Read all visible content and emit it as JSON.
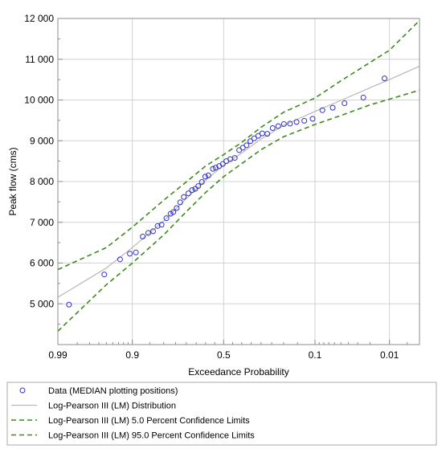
{
  "chart_data": {
    "type": "scatter",
    "title": "",
    "xlabel": "Exceedance Probability",
    "ylabel": "Peak flow (cms)",
    "x_scale": "normal-probability",
    "x_range": [
      0.99,
      0.003
    ],
    "ylim": [
      4000,
      12000
    ],
    "grid": true,
    "legend_position": "bottom",
    "x_ticks": [
      {
        "value": 0.99,
        "label": "0.99"
      },
      {
        "value": 0.9,
        "label": "0.9"
      },
      {
        "value": 0.5,
        "label": "0.5"
      },
      {
        "value": 0.1,
        "label": "0.1"
      },
      {
        "value": 0.01,
        "label": "0.01"
      }
    ],
    "y_ticks": [
      {
        "value": 5000,
        "label": "5 000"
      },
      {
        "value": 6000,
        "label": "6 000"
      },
      {
        "value": 7000,
        "label": "7 000"
      },
      {
        "value": 8000,
        "label": "8 000"
      },
      {
        "value": 9000,
        "label": "9 000"
      },
      {
        "value": 10000,
        "label": "10 000"
      },
      {
        "value": 11000,
        "label": "11 000"
      },
      {
        "value": 12000,
        "label": "12 000"
      }
    ],
    "series": [
      {
        "name": "Data (MEDIAN plotting positions)",
        "kind": "points",
        "color": "#3030c8",
        "points": [
          [
            0.985,
            4980
          ],
          [
            0.953,
            5720
          ],
          [
            0.927,
            6090
          ],
          [
            0.906,
            6230
          ],
          [
            0.891,
            6260
          ],
          [
            0.872,
            6650
          ],
          [
            0.855,
            6740
          ],
          [
            0.839,
            6780
          ],
          [
            0.823,
            6910
          ],
          [
            0.808,
            6940
          ],
          [
            0.789,
            7100
          ],
          [
            0.772,
            7210
          ],
          [
            0.76,
            7250
          ],
          [
            0.745,
            7350
          ],
          [
            0.729,
            7490
          ],
          [
            0.712,
            7620
          ],
          [
            0.69,
            7710
          ],
          [
            0.671,
            7790
          ],
          [
            0.655,
            7820
          ],
          [
            0.639,
            7890
          ],
          [
            0.62,
            7990
          ],
          [
            0.602,
            8120
          ],
          [
            0.585,
            8150
          ],
          [
            0.56,
            8310
          ],
          [
            0.545,
            8340
          ],
          [
            0.525,
            8380
          ],
          [
            0.505,
            8430
          ],
          [
            0.485,
            8500
          ],
          [
            0.463,
            8550
          ],
          [
            0.438,
            8580
          ],
          [
            0.414,
            8770
          ],
          [
            0.394,
            8830
          ],
          [
            0.374,
            8890
          ],
          [
            0.354,
            8990
          ],
          [
            0.334,
            9060
          ],
          [
            0.314,
            9120
          ],
          [
            0.294,
            9180
          ],
          [
            0.27,
            9170
          ],
          [
            0.246,
            9310
          ],
          [
            0.222,
            9360
          ],
          [
            0.199,
            9410
          ],
          [
            0.176,
            9420
          ],
          [
            0.153,
            9460
          ],
          [
            0.129,
            9490
          ],
          [
            0.106,
            9540
          ],
          [
            0.083,
            9750
          ],
          [
            0.063,
            9810
          ],
          [
            0.045,
            9920
          ],
          [
            0.025,
            10060
          ],
          [
            0.012,
            10530
          ]
        ]
      },
      {
        "name": "Log-Pearson III (LM) Distribution",
        "kind": "line",
        "color": "#b8b8b8",
        "dash": "solid",
        "points": [
          [
            0.99,
            5160
          ],
          [
            0.95,
            5880
          ],
          [
            0.9,
            6380
          ],
          [
            0.8,
            7030
          ],
          [
            0.7,
            7580
          ],
          [
            0.6,
            8030
          ],
          [
            0.5,
            8400
          ],
          [
            0.4,
            8700
          ],
          [
            0.3,
            9040
          ],
          [
            0.2,
            9380
          ],
          [
            0.1,
            9720
          ],
          [
            0.05,
            9990
          ],
          [
            0.02,
            10300
          ],
          [
            0.01,
            10500
          ],
          [
            0.003,
            10830
          ]
        ]
      },
      {
        "name": "Log-Pearson III (LM) 5.0 Percent Confidence Limits",
        "kind": "line",
        "color": "#3c8a1e",
        "dash": "dashed",
        "points": [
          [
            0.99,
            5840
          ],
          [
            0.95,
            6380
          ],
          [
            0.9,
            6880
          ],
          [
            0.8,
            7540
          ],
          [
            0.7,
            7990
          ],
          [
            0.6,
            8380
          ],
          [
            0.5,
            8660
          ],
          [
            0.4,
            8960
          ],
          [
            0.3,
            9330
          ],
          [
            0.2,
            9700
          ],
          [
            0.1,
            10050
          ],
          [
            0.05,
            10470
          ],
          [
            0.02,
            10920
          ],
          [
            0.01,
            11220
          ],
          [
            0.003,
            11950
          ]
        ]
      },
      {
        "name": "Log-Pearson III (LM) 95.0 Percent Confidence Limits",
        "kind": "line",
        "color": "#3c8a1e",
        "dash": "dashed",
        "points": [
          [
            0.99,
            4330
          ],
          [
            0.95,
            5470
          ],
          [
            0.9,
            6000
          ],
          [
            0.8,
            6690
          ],
          [
            0.7,
            7260
          ],
          [
            0.6,
            7730
          ],
          [
            0.5,
            8120
          ],
          [
            0.4,
            8440
          ],
          [
            0.3,
            8780
          ],
          [
            0.2,
            9100
          ],
          [
            0.1,
            9400
          ],
          [
            0.05,
            9620
          ],
          [
            0.02,
            9880
          ],
          [
            0.01,
            10020
          ],
          [
            0.003,
            10240
          ]
        ]
      }
    ]
  }
}
